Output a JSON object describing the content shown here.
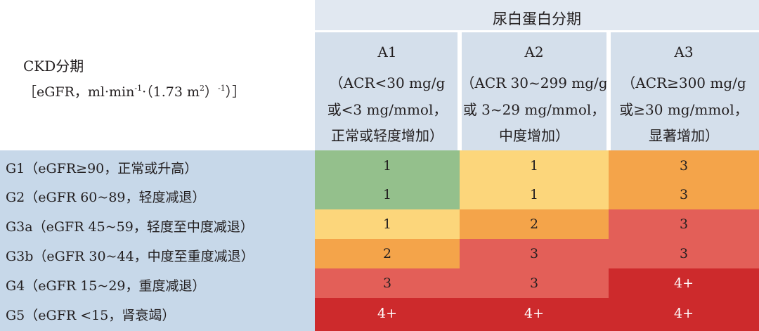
{
  "table": {
    "stub_header_line1": "CKD分期",
    "stub_header_line2_pre": "［eGFR，ml·min",
    "stub_header_sup1": "-1",
    "stub_header_line2_mid": "·（1.73 m",
    "stub_header_sup2": "2",
    "stub_header_line2_mid2": "）",
    "stub_header_sup3": "-1",
    "stub_header_line2_post": "）］",
    "group_header": "尿白蛋白分期",
    "columns": [
      {
        "name": "A1",
        "lines": [
          "（ACR<30 mg/g",
          "或<3 mg/mmol，",
          "正常或轻度增加）"
        ]
      },
      {
        "name": "A2",
        "lines": [
          "（ACR 30~299 mg/g",
          "或 3~29 mg/mmol，",
          "中度增加）"
        ]
      },
      {
        "name": "A3",
        "lines": [
          "（ACR≥300 mg/g",
          "或≥30 mg/mmol，",
          "显著增加）"
        ]
      }
    ],
    "rows": [
      {
        "label": "G1（eGFR≥90，正常或升高）",
        "values": [
          "1",
          "1",
          "3"
        ],
        "colors": [
          "#94c08c",
          "#fcd67b",
          "#f4a44a"
        ]
      },
      {
        "label": "G2（eGFR 60~89，轻度减退）",
        "values": [
          "1",
          "1",
          "3"
        ],
        "colors": [
          "#94c08c",
          "#fcd67b",
          "#f4a44a"
        ]
      },
      {
        "label": "G3a（eGFR 45~59，轻度至中度减退）",
        "values": [
          "1",
          "2",
          "3"
        ],
        "colors": [
          "#fcd67b",
          "#f4a44a",
          "#e35f58"
        ]
      },
      {
        "label": "G3b（eGFR 30~44，中度至重度减退）",
        "values": [
          "2",
          "3",
          "3"
        ],
        "colors": [
          "#f4a44a",
          "#e35f58",
          "#e35f58"
        ]
      },
      {
        "label": "G4（eGFR 15~29，重度减退）",
        "values": [
          "3",
          "3",
          "4+"
        ],
        "colors": [
          "#e35f58",
          "#e35f58",
          "#cd2a2c"
        ]
      },
      {
        "label": "G5（eGFR <15，肾衰竭）",
        "values": [
          "4+",
          "4+",
          "4+"
        ],
        "colors": [
          "#cd2a2c",
          "#cd2a2c",
          "#cd2a2c"
        ]
      }
    ]
  }
}
